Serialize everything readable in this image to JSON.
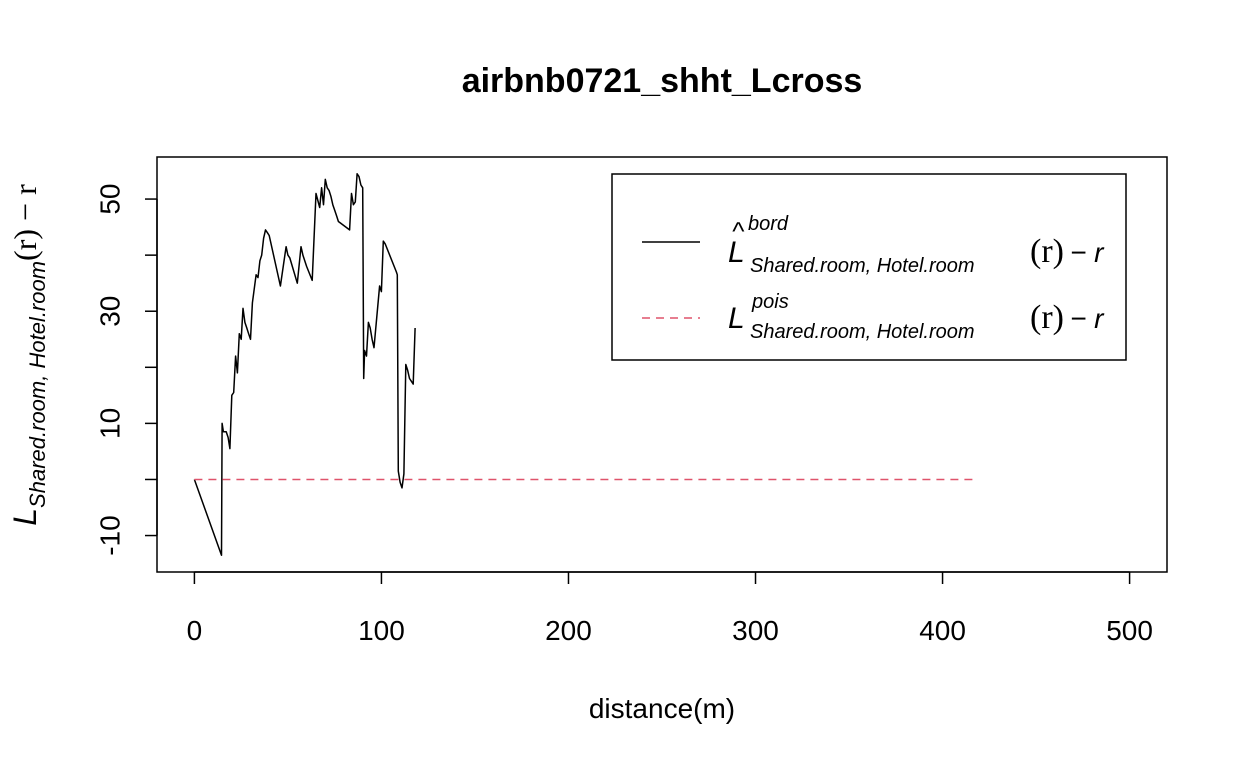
{
  "chart_data": {
    "type": "line",
    "title": "airbnb0721_shht_Lcross",
    "xlabel": "distance(m)",
    "ylabel": {
      "base": "L",
      "subscript": "Shared.room, Hotel.room",
      "suffix": "(r) − r"
    },
    "xlim": [
      -20,
      520
    ],
    "ylim": [
      -16.5,
      57.5
    ],
    "x_ticks": [
      0,
      100,
      200,
      300,
      400,
      500
    ],
    "x_tick_labels": [
      "0",
      "100",
      "200",
      "300",
      "400",
      "500"
    ],
    "y_ticks": [
      -10,
      10,
      30,
      50
    ],
    "y_tick_labels": [
      "-10",
      "10",
      "30",
      "50"
    ],
    "y_minor_ticks": [
      -10,
      0,
      10,
      20,
      30,
      40,
      50
    ],
    "grid": false,
    "legend": {
      "position": "top-right",
      "entries": [
        {
          "base": "L",
          "hat": "^",
          "superscript": "bord",
          "subscript": "Shared.room, Hotel.room",
          "paren": "(r)",
          "suffix": "− r",
          "color": "#000000",
          "dash": "solid"
        },
        {
          "base": "L",
          "hat": "",
          "superscript": "pois",
          "subscript": "Shared.room, Hotel.room",
          "paren": "(r)",
          "suffix": "− r",
          "color": "#DF536B",
          "dash": "dashed"
        }
      ]
    },
    "series": [
      {
        "key": "bord",
        "color": "#000000",
        "dash": "solid",
        "x": [
          0,
          14.5,
          14.8,
          15.5,
          17,
          18,
          19,
          20,
          21,
          22,
          23,
          24,
          25,
          26,
          27,
          28,
          29,
          30,
          31,
          33,
          34,
          35,
          36,
          37,
          38,
          39,
          40,
          46,
          49,
          50,
          51,
          55,
          57,
          58,
          60,
          63,
          65,
          67,
          68,
          69,
          70,
          71,
          72,
          73,
          74,
          75,
          76,
          77,
          83,
          84,
          85,
          86,
          87,
          88,
          89,
          90,
          90.5,
          91,
          92,
          93,
          94,
          95,
          96,
          99,
          100,
          101,
          102,
          108,
          108.5,
          109,
          110,
          111,
          112,
          113,
          114,
          115,
          116,
          117,
          118
        ],
        "y": [
          0,
          -13.5,
          10,
          8.5,
          8.5,
          7.5,
          5.5,
          15,
          15.5,
          22,
          19,
          26,
          25,
          30.5,
          28,
          27,
          26,
          25,
          31.5,
          36.5,
          36,
          39,
          40,
          43,
          44.5,
          44,
          43.5,
          34.5,
          41.5,
          40,
          39.5,
          35,
          41.5,
          40,
          38,
          35.5,
          51,
          48.5,
          52,
          49,
          53.5,
          52,
          51.5,
          50.5,
          49,
          48,
          47,
          46,
          44.5,
          51,
          49,
          49.5,
          54.5,
          54,
          52.5,
          52,
          18,
          23,
          22,
          28,
          27,
          25,
          23.5,
          34.5,
          33.5,
          42.5,
          42,
          37,
          36.5,
          1.5,
          -0.5,
          -1.5,
          1,
          20.5,
          19.5,
          18,
          17.5,
          17,
          27
        ]
      },
      {
        "key": "pois",
        "color": "#DF536B",
        "dash": "dashed",
        "x": [
          0,
          418
        ],
        "y": [
          0,
          0
        ]
      }
    ]
  }
}
